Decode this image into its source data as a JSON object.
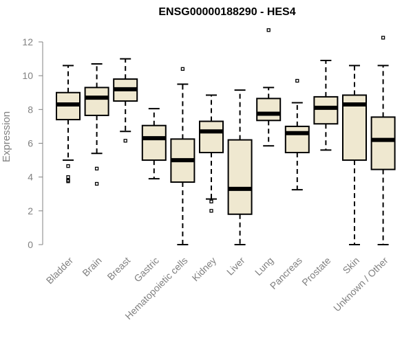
{
  "chart_data": {
    "type": "box",
    "title": "ENSG00000188290 - HES4",
    "xlabel": "",
    "ylabel": "Expression",
    "ylim": [
      0,
      12
    ],
    "yticks": [
      0,
      2,
      4,
      6,
      8,
      10,
      12
    ],
    "grid": false,
    "legend": "none",
    "colors": {
      "box_fill": "#efe8d0",
      "stroke": "#000000",
      "axis": "#808080"
    },
    "categories": [
      "Bladder",
      "Brain",
      "Breast",
      "Gastric",
      "Hematopoietic cells",
      "Kidney",
      "Liver",
      "Lung",
      "Pancreas",
      "Prostate",
      "Skin",
      "Unknown / Other"
    ],
    "boxes": [
      {
        "category": "Bladder",
        "whisker_low": 5.0,
        "q1": 7.4,
        "median": 8.3,
        "q3": 9.0,
        "whisker_high": 10.6,
        "outliers": [
          4.65,
          4.0,
          3.8,
          3.75
        ]
      },
      {
        "category": "Brain",
        "whisker_low": 5.4,
        "q1": 7.65,
        "median": 8.7,
        "q3": 9.3,
        "whisker_high": 10.7,
        "outliers": [
          4.5,
          3.6
        ]
      },
      {
        "category": "Breast",
        "whisker_low": 6.7,
        "q1": 8.5,
        "median": 9.2,
        "q3": 9.8,
        "whisker_high": 11.0,
        "outliers": [
          6.15
        ]
      },
      {
        "category": "Gastric",
        "whisker_low": 3.9,
        "q1": 5.0,
        "median": 6.3,
        "q3": 7.05,
        "whisker_high": 8.05,
        "outliers": []
      },
      {
        "category": "Hematopoietic cells",
        "whisker_low": 0.0,
        "q1": 3.7,
        "median": 5.0,
        "q3": 6.25,
        "whisker_high": 9.5,
        "outliers": [
          10.4
        ]
      },
      {
        "category": "Kidney",
        "whisker_low": 2.7,
        "q1": 5.45,
        "median": 6.7,
        "q3": 7.3,
        "whisker_high": 8.85,
        "outliers": [
          2.55,
          2.0
        ]
      },
      {
        "category": "Liver",
        "whisker_low": 0.0,
        "q1": 1.8,
        "median": 3.3,
        "q3": 6.2,
        "whisker_high": 9.15,
        "outliers": []
      },
      {
        "category": "Lung",
        "whisker_low": 5.85,
        "q1": 7.35,
        "median": 7.75,
        "q3": 8.65,
        "whisker_high": 9.3,
        "outliers": [
          12.7
        ]
      },
      {
        "category": "Pancreas",
        "whisker_low": 3.25,
        "q1": 5.45,
        "median": 6.6,
        "q3": 7.0,
        "whisker_high": 8.4,
        "outliers": [
          9.7
        ]
      },
      {
        "category": "Prostate",
        "whisker_low": 5.6,
        "q1": 7.15,
        "median": 8.1,
        "q3": 8.75,
        "whisker_high": 10.9,
        "outliers": []
      },
      {
        "category": "Skin",
        "whisker_low": 0.0,
        "q1": 5.0,
        "median": 8.3,
        "q3": 8.85,
        "whisker_high": 10.6,
        "outliers": []
      },
      {
        "category": "Unknown / Other",
        "whisker_low": 0.0,
        "q1": 4.45,
        "median": 6.2,
        "q3": 7.55,
        "whisker_high": 10.6,
        "outliers": [
          12.25
        ]
      }
    ]
  }
}
